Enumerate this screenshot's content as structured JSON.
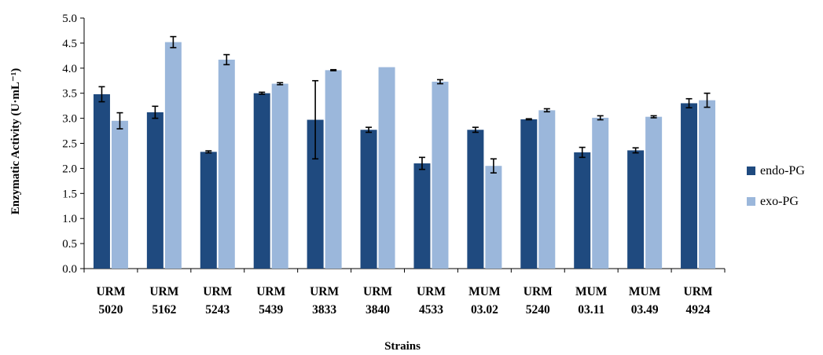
{
  "chart_data": {
    "type": "bar",
    "title": "",
    "xlabel": "Strains",
    "ylabel": "Enzymatic Activity (U·mL⁻¹)",
    "ylim": [
      0,
      5.0
    ],
    "yticks": [
      "0.0",
      "0.5",
      "1.0",
      "1.5",
      "2.0",
      "2.5",
      "3.0",
      "3.5",
      "4.0",
      "4.5",
      "5.0"
    ],
    "grid": false,
    "legend_position": "right",
    "categories": [
      [
        "URM",
        "5020"
      ],
      [
        "URM",
        "5162"
      ],
      [
        "URM",
        "5243"
      ],
      [
        "URM",
        "5439"
      ],
      [
        "URM",
        "3833"
      ],
      [
        "URM",
        "3840"
      ],
      [
        "URM",
        "4533"
      ],
      [
        "MUM",
        "03.02"
      ],
      [
        "URM",
        "5240"
      ],
      [
        "MUM",
        "03.11"
      ],
      [
        "MUM",
        "03.49"
      ],
      [
        "URM",
        "4924"
      ]
    ],
    "series": [
      {
        "name": "endo-PG",
        "color": "#1f4a7f",
        "values": [
          3.48,
          3.12,
          2.33,
          3.5,
          2.97,
          2.77,
          2.1,
          2.77,
          2.98,
          2.32,
          2.36,
          3.3
        ],
        "errors": [
          0.15,
          0.12,
          0.02,
          0.02,
          0.78,
          0.05,
          0.12,
          0.05,
          0.01,
          0.1,
          0.05,
          0.09
        ]
      },
      {
        "name": "exo-PG",
        "color": "#9bb7db",
        "values": [
          2.95,
          4.52,
          4.17,
          3.69,
          3.96,
          4.02,
          3.73,
          2.05,
          3.16,
          3.01,
          3.03,
          3.36
        ],
        "errors": [
          0.16,
          0.11,
          0.1,
          0.02,
          0.01,
          0.0,
          0.04,
          0.14,
          0.03,
          0.04,
          0.02,
          0.14
        ]
      }
    ]
  }
}
